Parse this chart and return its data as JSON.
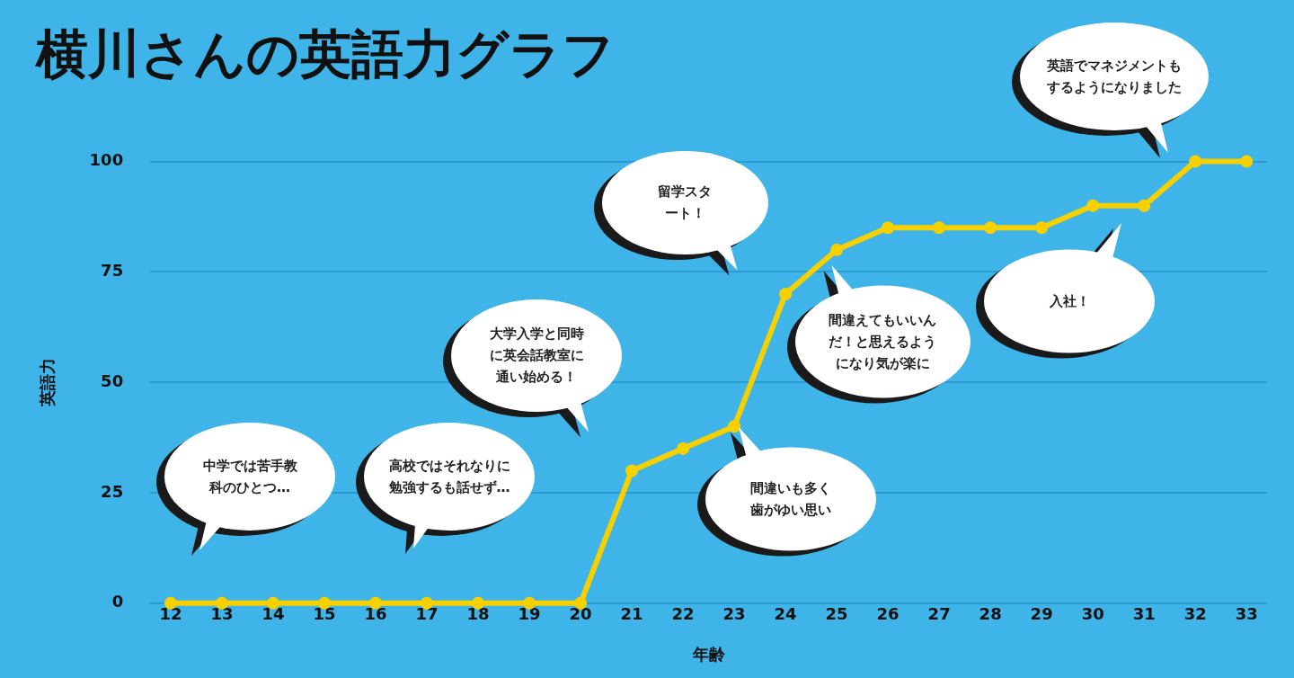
{
  "chart_data": {
    "type": "line",
    "title": "横川さんの英語力グラフ",
    "xlabel": "年齢",
    "ylabel": "英語力",
    "x": [
      12,
      13,
      14,
      15,
      16,
      17,
      18,
      19,
      20,
      21,
      22,
      23,
      24,
      25,
      26,
      27,
      28,
      29,
      30,
      31,
      32,
      33
    ],
    "series": [
      {
        "color": "#f7d000",
        "values": [
          0,
          0,
          0,
          0,
          0,
          0,
          0,
          0,
          0,
          30,
          35,
          40,
          70,
          80,
          85,
          85,
          85,
          85,
          90,
          90,
          100,
          100
        ]
      }
    ],
    "xlim": [
      11.6,
      33.4
    ],
    "xticks": [
      12,
      13,
      14,
      15,
      16,
      17,
      18,
      19,
      20,
      21,
      22,
      23,
      24,
      25,
      26,
      27,
      28,
      29,
      30,
      31,
      32,
      33
    ],
    "ylim": [
      0,
      100
    ],
    "yticks": [
      0,
      25,
      50,
      75,
      100
    ],
    "grid": "y",
    "legend": false,
    "marker": "circle",
    "line_style": "solid",
    "annotations": [
      "中学では苦手教科のひとつ…",
      "高校ではそれなりに勉強するも話せず…",
      "大学入学と同時に英会話教室に通い始める！",
      "留学スタート！",
      "間違いも多く歯がゆい思い",
      "間違えてもいいんだ！と思えるようになり気が楽に",
      "入社！",
      "英語でマネジメントもするようになりました"
    ]
  }
}
